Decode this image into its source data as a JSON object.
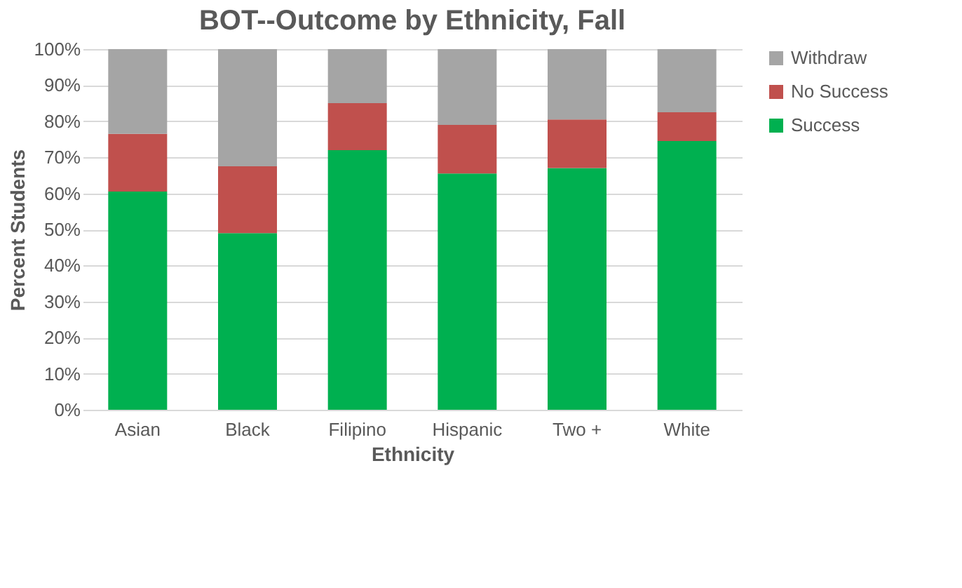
{
  "chart_data": {
    "type": "bar",
    "stacked": true,
    "title": "BOT--Outcome by Ethnicity, Fall",
    "xlabel": "Ethnicity",
    "ylabel": "Percent Students",
    "categories": [
      "Asian",
      "Black",
      "Filipino",
      "Hispanic",
      "Two +",
      "White"
    ],
    "series": [
      {
        "name": "Success",
        "color": "#00b050",
        "values": [
          60.5,
          49,
          72,
          65.5,
          67,
          74.5
        ]
      },
      {
        "name": "No Success",
        "color": "#c0504d",
        "values": [
          16,
          18.5,
          13,
          13.5,
          13.5,
          8
        ]
      },
      {
        "name": "Withdraw",
        "color": "#a5a5a5",
        "values": [
          23.5,
          32.5,
          15,
          21,
          19.5,
          17.5
        ]
      }
    ],
    "ylim": [
      0,
      100
    ],
    "yticks": [
      {
        "value": 0,
        "label": "0%"
      },
      {
        "value": 10,
        "label": "10%"
      },
      {
        "value": 20,
        "label": "20%"
      },
      {
        "value": 30,
        "label": "30%"
      },
      {
        "value": 40,
        "label": "40%"
      },
      {
        "value": 50,
        "label": "50%"
      },
      {
        "value": 60,
        "label": "60%"
      },
      {
        "value": 70,
        "label": "70%"
      },
      {
        "value": 80,
        "label": "80%"
      },
      {
        "value": 90,
        "label": "90%"
      },
      {
        "value": 100,
        "label": "100%"
      }
    ],
    "grid": "y",
    "legend": "right"
  }
}
